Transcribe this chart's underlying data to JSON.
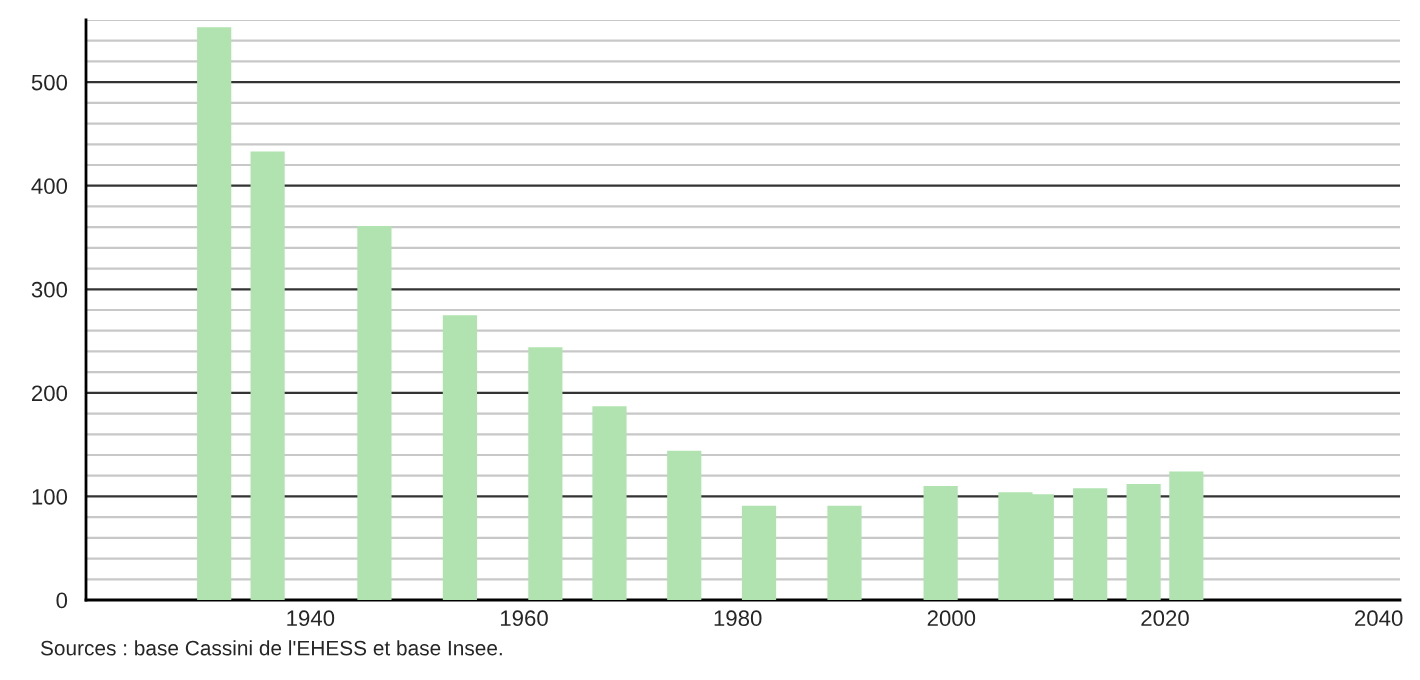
{
  "chart_data": {
    "type": "bar",
    "color": "#b0e3b0",
    "x": [
      1931,
      1936,
      1946,
      1954,
      1962,
      1968,
      1975,
      1982,
      1990,
      1999,
      2006,
      2008,
      2013,
      2018,
      2022
    ],
    "values": [
      553,
      433,
      361,
      275,
      244,
      187,
      144,
      91,
      91,
      110,
      104,
      102,
      108,
      112,
      124
    ],
    "xlim": [
      1919,
      2042
    ],
    "xticks": [
      1940,
      1960,
      1980,
      2000,
      2020,
      2040
    ],
    "ylim": [
      0,
      560
    ],
    "yticks": [
      0,
      {
        "value": 20,
        "label": null
      },
      {
        "value": 40,
        "label": null
      },
      {
        "value": 60,
        "label": null
      },
      {
        "value": 80,
        "label": null
      },
      100,
      {
        "value": 120,
        "label": null
      },
      {
        "value": 140,
        "label": null
      },
      {
        "value": 160,
        "label": null
      },
      {
        "value": 180,
        "label": null
      },
      200,
      {
        "value": 220,
        "label": null
      },
      {
        "value": 240,
        "label": null
      },
      {
        "value": 260,
        "label": null
      },
      {
        "value": 280,
        "label": null
      },
      300,
      {
        "value": 320,
        "label": null
      },
      {
        "value": 340,
        "label": null
      },
      {
        "value": 360,
        "label": null
      },
      {
        "value": 380,
        "label": null
      },
      400,
      {
        "value": 420,
        "label": null
      },
      {
        "value": 440,
        "label": null
      },
      {
        "value": 460,
        "label": null
      },
      {
        "value": 480,
        "label": null
      },
      500,
      {
        "value": 520,
        "label": null
      },
      {
        "value": 540,
        "label": null
      },
      {
        "value": 560,
        "label": null
      }
    ],
    "grid": "y",
    "annotations": [
      "Sources : base Cassini de l'EHESS et base Insee."
    ]
  }
}
